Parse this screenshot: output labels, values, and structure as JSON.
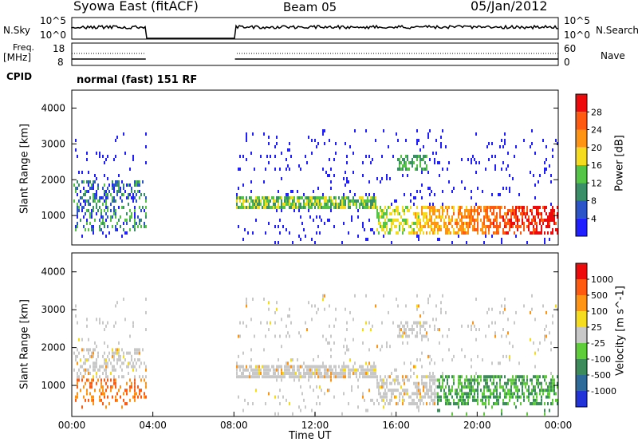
{
  "header": {
    "radar_title": "Syowa East (fitACF)",
    "beam_title": "Beam 05",
    "date_title": "05/Jan/2012"
  },
  "aux": {
    "nsky_label": "N.Sky",
    "nsearch_label": "N.Search",
    "freq_label": "Freq.",
    "mhz_label": "[MHz]",
    "nave_label": "Nave",
    "cpid_label": "CPID",
    "cpid_value": "normal (fast) 151 RF",
    "noise_ticks": [
      "10^5",
      "10^0"
    ],
    "freq_ticks": [
      "18",
      "8"
    ],
    "nave_ticks": [
      "60",
      "0"
    ]
  },
  "chart_data": [
    {
      "type": "heatmap",
      "title": "",
      "ylabel": "Slant Range [km]",
      "ylim": [
        180,
        4500
      ],
      "yticks": [
        1000,
        2000,
        3000,
        4000
      ],
      "xlim_hours": [
        0,
        24
      ],
      "colorbar": {
        "label": "Power [dB]",
        "ticks": [
          "4",
          "8",
          "12",
          "16",
          "20",
          "24",
          "28"
        ],
        "colors": [
          "#1f1fff",
          "#2b55c8",
          "#3a8f68",
          "#55c548",
          "#f5dc1e",
          "#ff9414",
          "#ff5a10",
          "#ee0a0a"
        ]
      },
      "data_gap_hours": [
        3.65,
        8.05
      ]
    },
    {
      "type": "heatmap",
      "title": "",
      "ylabel": "Slant Range [km]",
      "ylim": [
        180,
        4500
      ],
      "yticks": [
        1000,
        2000,
        3000,
        4000
      ],
      "xlim_hours": [
        0,
        24
      ],
      "colorbar": {
        "label": "Velocity [m s^-1]",
        "ticks": [
          "1000",
          "500",
          "100",
          "25",
          "-25",
          "-100",
          "-500",
          "-1000"
        ],
        "colors": [
          "#2234d8",
          "#2e6a9a",
          "#3c8b5a",
          "#5fcc3a",
          "#c8c8c8",
          "#f5dc1e",
          "#ff9414",
          "#ff5a10",
          "#ee0a0a"
        ]
      },
      "data_gap_hours": [
        3.65,
        8.05
      ]
    }
  ],
  "xaxis": {
    "label": "Time UT",
    "ticks": [
      "00:00",
      "04:00",
      "08:00",
      "12:00",
      "16:00",
      "20:00",
      "00:00"
    ]
  }
}
